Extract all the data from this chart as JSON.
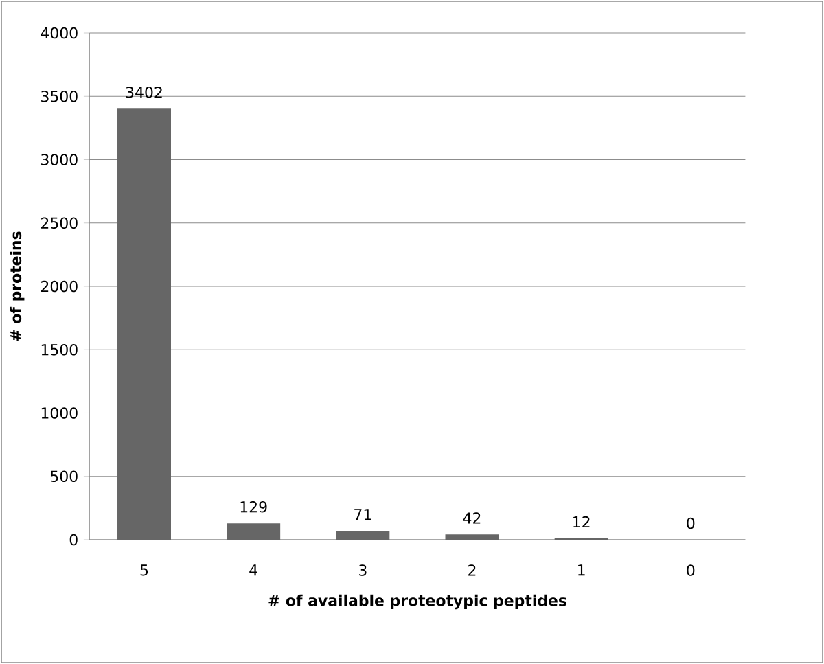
{
  "chart_data": {
    "type": "bar",
    "xlabel": "# of available proteotypic peptides",
    "ylabel": "# of proteins",
    "categories": [
      "5",
      "4",
      "3",
      "2",
      "1",
      "0"
    ],
    "values": [
      3402,
      129,
      71,
      42,
      12,
      0
    ],
    "color": "#666666",
    "ylim": [
      0,
      4000
    ],
    "yticks": [
      0,
      500,
      1000,
      1500,
      2000,
      2500,
      3000,
      3500,
      4000
    ],
    "grid": "y",
    "data_labels": true
  }
}
